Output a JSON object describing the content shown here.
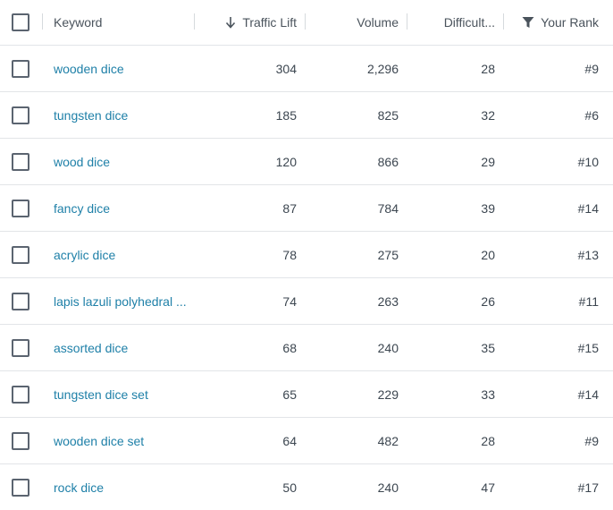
{
  "header": {
    "keyword": "Keyword",
    "traffic_lift": "Traffic Lift",
    "volume": "Volume",
    "difficulty": "Difficult...",
    "your_rank": "Your Rank"
  },
  "rows": [
    {
      "keyword": "wooden dice",
      "traffic_lift": "304",
      "volume": "2,296",
      "difficulty": "28",
      "rank": "#9"
    },
    {
      "keyword": "tungsten dice",
      "traffic_lift": "185",
      "volume": "825",
      "difficulty": "32",
      "rank": "#6"
    },
    {
      "keyword": "wood dice",
      "traffic_lift": "120",
      "volume": "866",
      "difficulty": "29",
      "rank": "#10"
    },
    {
      "keyword": "fancy dice",
      "traffic_lift": "87",
      "volume": "784",
      "difficulty": "39",
      "rank": "#14"
    },
    {
      "keyword": "acrylic dice",
      "traffic_lift": "78",
      "volume": "275",
      "difficulty": "20",
      "rank": "#13"
    },
    {
      "keyword": "lapis lazuli polyhedral ...",
      "traffic_lift": "74",
      "volume": "263",
      "difficulty": "26",
      "rank": "#11"
    },
    {
      "keyword": "assorted dice",
      "traffic_lift": "68",
      "volume": "240",
      "difficulty": "35",
      "rank": "#15"
    },
    {
      "keyword": "tungsten dice set",
      "traffic_lift": "65",
      "volume": "229",
      "difficulty": "33",
      "rank": "#14"
    },
    {
      "keyword": "wooden dice set",
      "traffic_lift": "64",
      "volume": "482",
      "difficulty": "28",
      "rank": "#9"
    },
    {
      "keyword": "rock dice",
      "traffic_lift": "50",
      "volume": "240",
      "difficulty": "47",
      "rank": "#17"
    }
  ],
  "icons": {
    "sort": "arrow-down-icon",
    "filter": "filter-icon"
  },
  "colors": {
    "link": "#1f80a8",
    "border": "#e2e5e8",
    "text": "#3c4650"
  }
}
